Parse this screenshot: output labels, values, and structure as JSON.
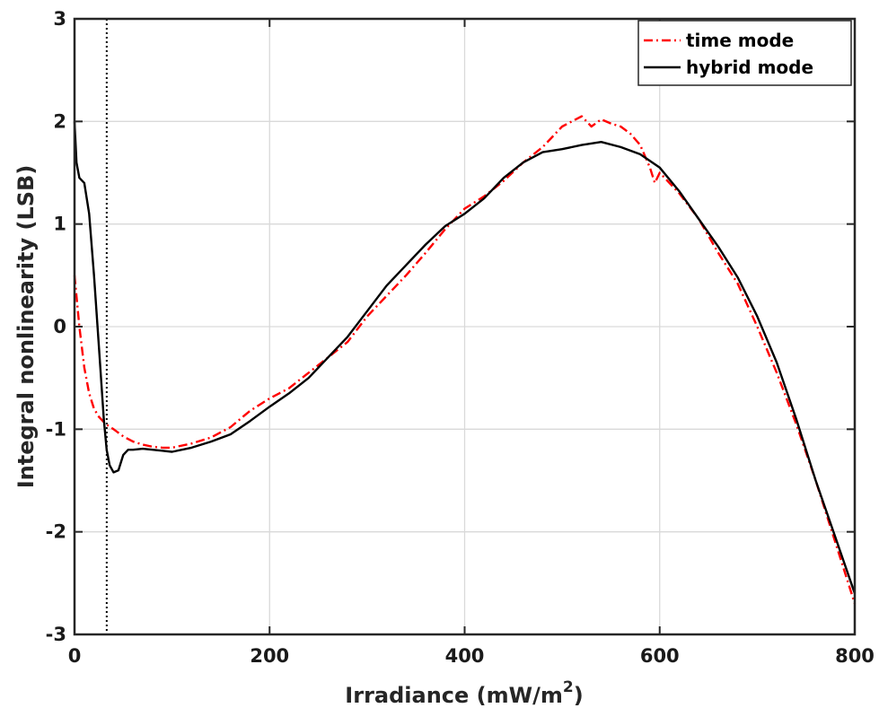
{
  "chart_data": {
    "type": "line",
    "xlabel": "Irradiance (mW/m",
    "xlabel_sup": "2",
    "xlabel_tail": ")",
    "ylabel": "Integral nonlinearity (LSB)",
    "xlim": [
      0,
      800
    ],
    "ylim": [
      -3,
      3
    ],
    "xticks": [
      0,
      200,
      400,
      600,
      800
    ],
    "yticks": [
      -3,
      -2,
      -1,
      0,
      1,
      2,
      3
    ],
    "grid": true,
    "legend_position": "top-right",
    "vertical_marker_x": 33,
    "series": [
      {
        "name": "time mode",
        "color": "#ff0000",
        "style": "dash-dot",
        "x": [
          0,
          5,
          10,
          15,
          20,
          25,
          30,
          35,
          40,
          50,
          60,
          70,
          80,
          90,
          100,
          120,
          140,
          160,
          180,
          200,
          220,
          240,
          260,
          280,
          300,
          320,
          340,
          360,
          380,
          400,
          420,
          440,
          460,
          480,
          500,
          510,
          520,
          530,
          540,
          550,
          560,
          570,
          580,
          590,
          595,
          600,
          610,
          620,
          640,
          660,
          680,
          700,
          720,
          740,
          760,
          780,
          800
        ],
        "y": [
          0.5,
          0.0,
          -0.4,
          -0.65,
          -0.8,
          -0.88,
          -0.93,
          -0.97,
          -1.0,
          -1.07,
          -1.12,
          -1.15,
          -1.17,
          -1.18,
          -1.18,
          -1.14,
          -1.08,
          -0.98,
          -0.82,
          -0.7,
          -0.6,
          -0.45,
          -0.3,
          -0.15,
          0.1,
          0.3,
          0.5,
          0.72,
          0.95,
          1.15,
          1.27,
          1.42,
          1.6,
          1.75,
          1.95,
          2.0,
          2.05,
          1.95,
          2.02,
          1.98,
          1.95,
          1.88,
          1.77,
          1.55,
          1.4,
          1.5,
          1.4,
          1.3,
          1.05,
          0.72,
          0.42,
          0.0,
          -0.45,
          -0.95,
          -1.5,
          -2.1,
          -2.7
        ]
      },
      {
        "name": "hybrid mode",
        "color": "#000000",
        "style": "solid",
        "x": [
          0,
          2,
          5,
          10,
          15,
          20,
          25,
          30,
          33,
          36,
          40,
          45,
          50,
          55,
          60,
          70,
          80,
          90,
          100,
          120,
          140,
          160,
          180,
          200,
          220,
          240,
          260,
          280,
          300,
          320,
          340,
          360,
          380,
          400,
          420,
          440,
          460,
          480,
          500,
          520,
          540,
          560,
          580,
          600,
          620,
          640,
          660,
          680,
          700,
          720,
          740,
          760,
          780,
          800
        ],
        "y": [
          2.0,
          1.6,
          1.45,
          1.4,
          1.1,
          0.5,
          -0.2,
          -0.9,
          -1.2,
          -1.35,
          -1.42,
          -1.4,
          -1.25,
          -1.2,
          -1.2,
          -1.19,
          -1.2,
          -1.21,
          -1.22,
          -1.18,
          -1.12,
          -1.05,
          -0.92,
          -0.78,
          -0.65,
          -0.5,
          -0.3,
          -0.1,
          0.15,
          0.4,
          0.6,
          0.8,
          0.98,
          1.1,
          1.25,
          1.45,
          1.6,
          1.7,
          1.73,
          1.77,
          1.8,
          1.75,
          1.68,
          1.55,
          1.32,
          1.05,
          0.78,
          0.48,
          0.1,
          -0.35,
          -0.9,
          -1.5,
          -2.05,
          -2.6
        ]
      }
    ]
  }
}
